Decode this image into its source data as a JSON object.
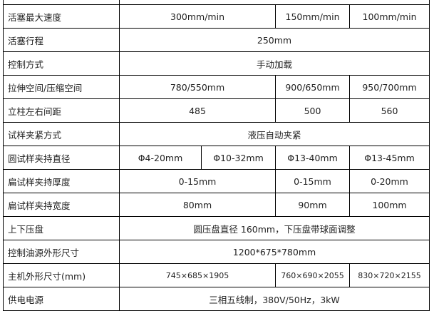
{
  "rows": [
    {
      "label": "",
      "cells": [
        ""
      ]
    },
    {
      "label": "活塞最大速度",
      "cells": [
        "300mm/min",
        "150mm/min",
        "100mm/min"
      ]
    },
    {
      "label": "活塞行程",
      "cells": [
        "250mm"
      ]
    },
    {
      "label": "控制方式",
      "cells": [
        "手动加载"
      ]
    },
    {
      "label": "拉伸空间/压缩空间",
      "cells": [
        "780/550mm",
        "900/650mm",
        "950/700mm"
      ]
    },
    {
      "label": "立柱左右间距",
      "cells": [
        "485",
        "500",
        "560"
      ]
    },
    {
      "label": "试样夹紧方式",
      "cells": [
        "液压自动夹紧"
      ]
    },
    {
      "label": "圆试样夹持直径",
      "cells": [
        "Φ4-20mm",
        "Φ10-32mm",
        "Φ13-40mm",
        "Φ13-45mm"
      ]
    },
    {
      "label": "扁试样夹持厚度",
      "cells": [
        "0-15mm",
        "0-15mm",
        "0-20mm"
      ]
    },
    {
      "label": "扁试样夹持宽度",
      "cells": [
        "80mm",
        "90mm",
        "100mm"
      ]
    },
    {
      "label": "上下压盘",
      "cells": [
        "圆压盘直径 160mm，下压盘带球面调整"
      ]
    },
    {
      "label": "控制油源外形尺寸",
      "cells": [
        "1200*675*780mm"
      ]
    },
    {
      "label": "主机外形尺寸(mm)",
      "cells": [
        "745×685×1905",
        "760×690×2055",
        "830×720×2155"
      ]
    },
    {
      "label": "供电电源",
      "cells": [
        "三相五线制，380V/50Hz，3kW"
      ]
    }
  ]
}
